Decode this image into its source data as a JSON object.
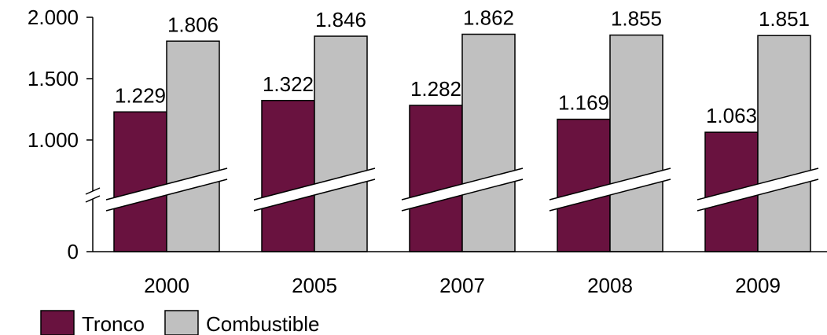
{
  "chart_data": {
    "type": "bar",
    "categories": [
      "2000",
      "2005",
      "2007",
      "2008",
      "2009"
    ],
    "series": [
      {
        "name": "Tronco",
        "values": [
          1229,
          1322,
          1282,
          1169,
          1063
        ],
        "labels": [
          "1.229",
          "1.322",
          "1.282",
          "1.169",
          "1.063"
        ],
        "color": "#69123f"
      },
      {
        "name": "Combustible",
        "values": [
          1806,
          1846,
          1862,
          1855,
          1851
        ],
        "labels": [
          "1.806",
          "1.846",
          "1.862",
          "1.855",
          "1.851"
        ],
        "color": "#c0c0c0"
      }
    ],
    "yticks": [
      {
        "value": 0,
        "label": "0"
      },
      {
        "value": 1000,
        "label": "1.000"
      },
      {
        "value": 1500,
        "label": "1.500"
      },
      {
        "value": 2000,
        "label": "2.000"
      }
    ],
    "ylim": [
      0,
      2000
    ],
    "axis_break": true,
    "legend_position": "bottom-left",
    "grid": false
  }
}
